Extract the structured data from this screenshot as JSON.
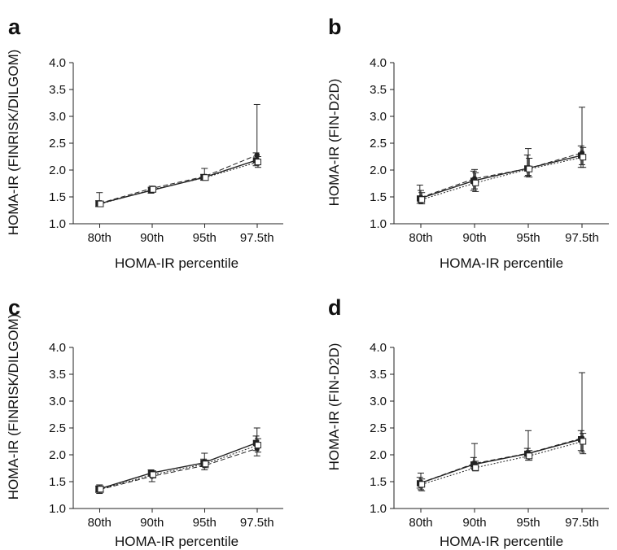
{
  "chart_data": [
    {
      "panel": "a",
      "type": "line",
      "xlabel": "HOMA-IR percentile",
      "ylabel": "HOMA-IR (FINRISK/DILGOM)",
      "categories": [
        "80th",
        "90th",
        "95th",
        "97.5th"
      ],
      "ylim": [
        1.0,
        4.0
      ],
      "yticks": [
        "1.0",
        "1.5",
        "2.0",
        "2.5",
        "3.0",
        "3.5",
        "4.0"
      ],
      "series": [
        {
          "style": "solid",
          "marker": "square-filled",
          "values": [
            1.37,
            1.62,
            1.86,
            2.18
          ],
          "err_low": [
            1.32,
            1.57,
            1.81,
            2.08
          ],
          "err_high": [
            1.43,
            1.68,
            1.92,
            2.32
          ]
        },
        {
          "style": "dashed",
          "marker": "circle-filled",
          "values": [
            1.38,
            1.66,
            1.88,
            2.28
          ],
          "err_low": [
            1.33,
            1.61,
            1.82,
            2.1
          ],
          "err_high": [
            1.58,
            1.7,
            2.03,
            3.22
          ]
        },
        {
          "style": "dotted",
          "marker": "square-open",
          "values": [
            1.37,
            1.64,
            1.86,
            2.15
          ],
          "err_low": [
            1.32,
            1.6,
            1.81,
            2.05
          ],
          "err_high": [
            1.42,
            1.68,
            1.91,
            2.25
          ]
        }
      ]
    },
    {
      "panel": "b",
      "type": "line",
      "xlabel": "HOMA-IR percentile",
      "ylabel": "HOMA-IR (FIN-D2D)",
      "categories": [
        "80th",
        "90th",
        "95th",
        "97.5th"
      ],
      "ylim": [
        1.0,
        4.0
      ],
      "yticks": [
        "1.0",
        "1.5",
        "2.0",
        "2.5",
        "3.0",
        "3.5",
        "4.0"
      ],
      "series": [
        {
          "style": "solid",
          "marker": "square-filled",
          "values": [
            1.47,
            1.8,
            2.03,
            2.27
          ],
          "err_low": [
            1.38,
            1.62,
            1.88,
            2.05
          ],
          "err_high": [
            1.72,
            1.98,
            2.28,
            2.45
          ]
        },
        {
          "style": "dashed",
          "marker": "circle-filled",
          "values": [
            1.49,
            1.84,
            2.03,
            2.32
          ],
          "err_low": [
            1.4,
            1.65,
            1.9,
            2.1
          ],
          "err_high": [
            1.62,
            2.01,
            2.4,
            3.17
          ]
        },
        {
          "style": "dotted",
          "marker": "square-open",
          "values": [
            1.45,
            1.76,
            2.02,
            2.24
          ],
          "err_low": [
            1.37,
            1.6,
            1.87,
            2.05
          ],
          "err_high": [
            1.58,
            1.95,
            2.22,
            2.42
          ]
        }
      ]
    },
    {
      "panel": "c",
      "type": "line",
      "xlabel": "HOMA-IR percentile",
      "ylabel": "HOMA-IR (FINRISK/DILGOM)",
      "categories": [
        "80th",
        "90th",
        "95th",
        "97.5th"
      ],
      "ylim": [
        1.0,
        4.0
      ],
      "yticks": [
        "1.0",
        "1.5",
        "2.0",
        "2.5",
        "3.0",
        "3.5",
        "4.0"
      ],
      "series": [
        {
          "style": "solid",
          "marker": "square-filled",
          "values": [
            1.36,
            1.66,
            1.85,
            2.22
          ],
          "err_low": [
            1.3,
            1.6,
            1.78,
            2.08
          ],
          "err_high": [
            1.42,
            1.72,
            1.92,
            2.35
          ]
        },
        {
          "style": "dashed",
          "marker": "circle-filled",
          "values": [
            1.35,
            1.6,
            1.8,
            2.12
          ],
          "err_low": [
            1.28,
            1.5,
            1.72,
            1.98
          ],
          "err_high": [
            1.44,
            1.7,
            2.03,
            2.5
          ]
        },
        {
          "style": "dotted",
          "marker": "square-open",
          "values": [
            1.36,
            1.63,
            1.83,
            2.18
          ],
          "err_low": [
            1.3,
            1.57,
            1.76,
            2.05
          ],
          "err_high": [
            1.42,
            1.7,
            1.9,
            2.3
          ]
        }
      ]
    },
    {
      "panel": "d",
      "type": "line",
      "xlabel": "HOMA-IR percentile",
      "ylabel": "HOMA-IR (FIN-D2D)",
      "categories": [
        "80th",
        "90th",
        "95th",
        "97.5th"
      ],
      "ylim": [
        1.0,
        4.0
      ],
      "yticks": [
        "1.0",
        "1.5",
        "2.0",
        "2.5",
        "3.0",
        "3.5",
        "4.0"
      ],
      "series": [
        {
          "style": "solid",
          "marker": "square-filled",
          "values": [
            1.47,
            1.82,
            2.02,
            2.29
          ],
          "err_low": [
            1.38,
            1.75,
            1.94,
            2.08
          ],
          "err_high": [
            1.58,
            1.95,
            2.12,
            2.45
          ]
        },
        {
          "style": "dashed",
          "marker": "circle-filled",
          "values": [
            1.48,
            1.84,
            2.03,
            2.31
          ],
          "err_low": [
            1.35,
            1.72,
            1.9,
            2.05
          ],
          "err_high": [
            1.66,
            2.21,
            2.45,
            3.53
          ]
        },
        {
          "style": "dotted",
          "marker": "square-open",
          "values": [
            1.45,
            1.76,
            1.98,
            2.25
          ],
          "err_low": [
            1.33,
            1.7,
            1.9,
            2.02
          ],
          "err_high": [
            1.55,
            1.88,
            2.08,
            2.4
          ]
        }
      ]
    }
  ]
}
